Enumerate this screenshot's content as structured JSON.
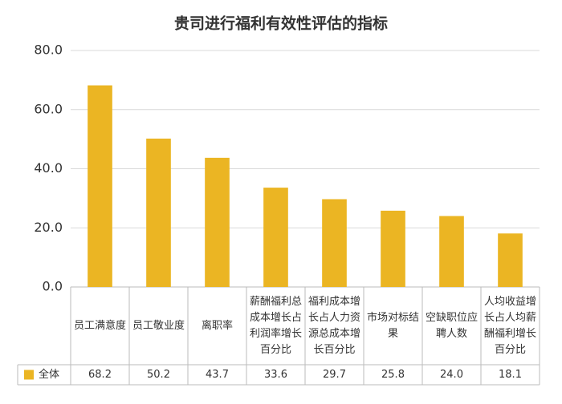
{
  "chart_data": {
    "type": "bar",
    "title": "贵司进行福利有效性评估的指标",
    "categories": [
      "员工满意度",
      "员工敬业度",
      "离职率",
      "薪酬福利总成本增长占利润率增长百分比",
      "福利成本增长占人力资源总成本增长百分比",
      "市场对标结果",
      "空缺职位应聘人数",
      "人均收益增长占人均薪酬福利增长百分比"
    ],
    "series": [
      {
        "name": "全体",
        "color": "#ebb523",
        "values": [
          68.2,
          50.2,
          43.7,
          33.6,
          29.7,
          25.8,
          24.0,
          18.1
        ],
        "value_labels": [
          "68.2",
          "50.2",
          "43.7",
          "33.6",
          "29.7",
          "25.8",
          "24.0",
          "18.1"
        ]
      }
    ],
    "ylim": [
      0,
      80
    ],
    "yticks": [
      {
        "value": 0,
        "label": "0.0"
      },
      {
        "value": 20,
        "label": "20.0"
      },
      {
        "value": 40,
        "label": "40.0"
      },
      {
        "value": 60,
        "label": "60.0"
      },
      {
        "value": 80,
        "label": "80.0"
      }
    ],
    "grid": true
  }
}
